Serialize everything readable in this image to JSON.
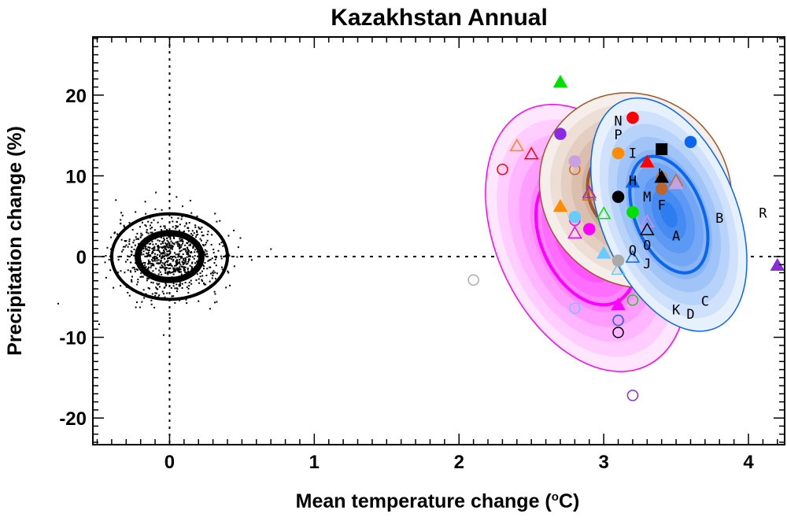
{
  "chart_data": {
    "type": "scatter",
    "title": "Kazakhstan Annual",
    "xlabel": "Mean temperature change (",
    "xlabel_sup": "o",
    "xlabel_end": "C)",
    "ylabel": "Precipitation change (%)",
    "xlim": [
      -0.53,
      4.25
    ],
    "ylim": [
      -23.3,
      27.2
    ],
    "xticks": [
      0,
      1,
      2,
      3,
      4
    ],
    "yticks": [
      -20,
      -10,
      0,
      10,
      20
    ],
    "xtick_labels": [
      "0",
      "1",
      "2",
      "3",
      "4"
    ],
    "ytick_labels": [
      "-20",
      "-10",
      "0",
      "10",
      "20"
    ],
    "reference_lines": {
      "x": 0,
      "y": 0
    },
    "natural_variability": {
      "center": [
        0,
        0
      ],
      "outer": [
        0.4,
        5.3
      ],
      "inner": [
        0.22,
        2.9
      ],
      "n_points": 900
    },
    "ellipses": [
      {
        "name": "pink",
        "color": "#ff00ff",
        "center": [
          2.88,
          2.3
        ],
        "rx": 0.62,
        "ry": 17.5,
        "rot": -25
      },
      {
        "name": "brown",
        "color": "#a0562a",
        "center": [
          3.22,
          8.2
        ],
        "rx": 0.64,
        "ry": 12.5,
        "rot": -40
      },
      {
        "name": "blue",
        "color": "#0a66ee",
        "center": [
          3.45,
          5.2
        ],
        "rx": 0.47,
        "ry": 15.2,
        "rot": -22
      }
    ],
    "points": [
      {
        "x": 2.7,
        "y": 21.6,
        "shape": "triangle",
        "filled": true,
        "color": "#00e000"
      },
      {
        "x": 2.7,
        "y": 15.2,
        "shape": "circle",
        "filled": true,
        "color": "#8a2be2"
      },
      {
        "x": 3.2,
        "y": 17.2,
        "shape": "circle",
        "filled": true,
        "color": "#ff0000"
      },
      {
        "x": 3.6,
        "y": 14.2,
        "shape": "circle",
        "filled": true,
        "color": "#0a66ee"
      },
      {
        "x": 3.1,
        "y": 12.8,
        "shape": "circle",
        "filled": true,
        "color": "#ff8c00"
      },
      {
        "x": 3.4,
        "y": 13.3,
        "shape": "square",
        "filled": true,
        "color": "#000000"
      },
      {
        "x": 3.3,
        "y": 11.7,
        "shape": "triangle",
        "filled": true,
        "color": "#ff0000"
      },
      {
        "x": 3.4,
        "y": 9.8,
        "shape": "circle",
        "filled": false,
        "color": "#d2691e"
      },
      {
        "x": 3.4,
        "y": 9.8,
        "shape": "triangle",
        "filled": true,
        "color": "#000000"
      },
      {
        "x": 3.4,
        "y": 8.4,
        "shape": "circle",
        "filled": true,
        "color": "#c0652a"
      },
      {
        "x": 3.5,
        "y": 9.4,
        "shape": "triangle",
        "filled": false,
        "color": "#d2691e"
      },
      {
        "x": 3.5,
        "y": 9.0,
        "shape": "triangle",
        "filled": true,
        "color": "#c9a0e0"
      },
      {
        "x": 3.2,
        "y": 9.2,
        "shape": "triangle",
        "filled": true,
        "color": "#0a66ee"
      },
      {
        "x": 3.1,
        "y": 7.4,
        "shape": "circle",
        "filled": true,
        "color": "#000000"
      },
      {
        "x": 3.2,
        "y": 5.5,
        "shape": "circle",
        "filled": true,
        "color": "#00e000"
      },
      {
        "x": 2.4,
        "y": 13.7,
        "shape": "triangle",
        "filled": false,
        "color": "#ff8c00"
      },
      {
        "x": 2.5,
        "y": 12.7,
        "shape": "triangle",
        "filled": false,
        "color": "#ff0000"
      },
      {
        "x": 2.3,
        "y": 10.8,
        "shape": "circle",
        "filled": false,
        "color": "#ff0000"
      },
      {
        "x": 2.8,
        "y": 10.8,
        "shape": "circle",
        "filled": false,
        "color": "#d2691e"
      },
      {
        "x": 2.8,
        "y": 11.8,
        "shape": "circle",
        "filled": true,
        "color": "#c9a0e0"
      },
      {
        "x": 2.9,
        "y": 7.9,
        "shape": "triangle",
        "filled": false,
        "color": "#8a2be2"
      },
      {
        "x": 2.9,
        "y": 7.6,
        "shape": "triangle",
        "filled": false,
        "color": "#d2691e"
      },
      {
        "x": 2.7,
        "y": 6.2,
        "shape": "triangle",
        "filled": true,
        "color": "#ff8c00"
      },
      {
        "x": 2.8,
        "y": 4.5,
        "shape": "circle",
        "filled": false,
        "color": "#ff00ff"
      },
      {
        "x": 2.8,
        "y": 4.9,
        "shape": "circle",
        "filled": true,
        "color": "#66ccff"
      },
      {
        "x": 3.0,
        "y": 5.3,
        "shape": "triangle",
        "filled": false,
        "color": "#00e000"
      },
      {
        "x": 2.9,
        "y": 3.4,
        "shape": "circle",
        "filled": true,
        "color": "#ff00ff"
      },
      {
        "x": 2.8,
        "y": 2.9,
        "shape": "triangle",
        "filled": false,
        "color": "#ff00ff"
      },
      {
        "x": 3.0,
        "y": 0.4,
        "shape": "triangle",
        "filled": true,
        "color": "#66ccff"
      },
      {
        "x": 3.1,
        "y": -1.6,
        "shape": "triangle",
        "filled": false,
        "color": "#66ccff"
      },
      {
        "x": 3.1,
        "y": -0.5,
        "shape": "circle",
        "filled": true,
        "color": "#aaaaaa"
      },
      {
        "x": 3.3,
        "y": 4.3,
        "shape": "triangle",
        "filled": false,
        "color": "#dd88dd"
      },
      {
        "x": 3.3,
        "y": 3.3,
        "shape": "triangle",
        "filled": false,
        "color": "#000000"
      },
      {
        "x": 3.2,
        "y": -0.1,
        "shape": "triangle",
        "filled": false,
        "color": "#0a66ee"
      },
      {
        "x": 2.1,
        "y": -2.9,
        "shape": "circle",
        "filled": false,
        "color": "#aaaaaa"
      },
      {
        "x": 2.8,
        "y": -6.4,
        "shape": "circle",
        "filled": false,
        "color": "#66ccff"
      },
      {
        "x": 3.1,
        "y": -6.0,
        "shape": "triangle",
        "filled": true,
        "color": "#ff00ff"
      },
      {
        "x": 3.2,
        "y": -5.4,
        "shape": "circle",
        "filled": false,
        "color": "#00e000"
      },
      {
        "x": 3.1,
        "y": -7.9,
        "shape": "circle",
        "filled": false,
        "color": "#0a66ee"
      },
      {
        "x": 3.1,
        "y": -9.4,
        "shape": "circle",
        "filled": false,
        "color": "#000000"
      },
      {
        "x": 3.2,
        "y": -17.2,
        "shape": "circle",
        "filled": false,
        "color": "#8a2be2"
      },
      {
        "x": 4.2,
        "y": -1.1,
        "shape": "triangle",
        "filled": true,
        "color": "#8a2be2"
      }
    ],
    "letters": [
      {
        "t": "N",
        "x": 3.1,
        "y": 16.8
      },
      {
        "t": "P",
        "x": 3.1,
        "y": 15.1
      },
      {
        "t": "I",
        "x": 3.2,
        "y": 12.8
      },
      {
        "t": "H",
        "x": 3.2,
        "y": 9.4
      },
      {
        "t": "L",
        "x": 3.4,
        "y": 10.3
      },
      {
        "t": "M",
        "x": 3.3,
        "y": 7.4
      },
      {
        "t": "F",
        "x": 3.4,
        "y": 6.4
      },
      {
        "t": "B",
        "x": 3.8,
        "y": 4.8
      },
      {
        "t": "A",
        "x": 3.5,
        "y": 2.6
      },
      {
        "t": "O",
        "x": 3.3,
        "y": 1.4
      },
      {
        "t": "Q",
        "x": 3.2,
        "y": 0.8
      },
      {
        "t": "J",
        "x": 3.3,
        "y": -0.9
      },
      {
        "t": "K",
        "x": 3.5,
        "y": -6.6
      },
      {
        "t": "D",
        "x": 3.6,
        "y": -7.1
      },
      {
        "t": "C",
        "x": 3.7,
        "y": -5.5
      },
      {
        "t": "R",
        "x": 4.1,
        "y": 5.4
      }
    ]
  }
}
